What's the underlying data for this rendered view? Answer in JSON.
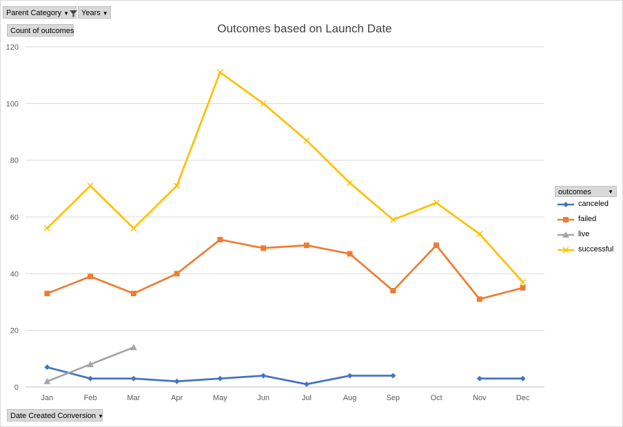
{
  "filters": {
    "parent_category": "Parent Category",
    "years": "Years",
    "count_of_outcomes": "Count of outcomes",
    "date_created": "Date Created Conversion"
  },
  "legend_title": "outcomes",
  "chart_data": {
    "type": "line",
    "title": "Outcomes based on Launch Date",
    "xlabel": "",
    "ylabel": "",
    "categories": [
      "Jan",
      "Feb",
      "Mar",
      "Apr",
      "May",
      "Jun",
      "Jul",
      "Aug",
      "Sep",
      "Oct",
      "Nov",
      "Dec"
    ],
    "ylim": [
      0,
      120
    ],
    "yticks": [
      0,
      20,
      40,
      60,
      80,
      100,
      120
    ],
    "grid": true,
    "legend_position": "right",
    "series": [
      {
        "name": "canceled",
        "color": "#4472c4",
        "marker": "diamond",
        "values": [
          7,
          3,
          3,
          2,
          3,
          4,
          1,
          4,
          4,
          null,
          3,
          3
        ]
      },
      {
        "name": "failed",
        "color": "#ed7d31",
        "marker": "square",
        "values": [
          33,
          39,
          33,
          40,
          52,
          49,
          50,
          47,
          34,
          50,
          31,
          35
        ]
      },
      {
        "name": "live",
        "color": "#a5a5a5",
        "marker": "triangle",
        "values": [
          2,
          8,
          14,
          null,
          null,
          null,
          null,
          null,
          null,
          null,
          null,
          null
        ]
      },
      {
        "name": "successful",
        "color": "#ffc000",
        "marker": "x",
        "values": [
          56,
          71,
          56,
          71,
          111,
          100,
          87,
          72,
          59,
          65,
          54,
          37
        ]
      }
    ]
  }
}
